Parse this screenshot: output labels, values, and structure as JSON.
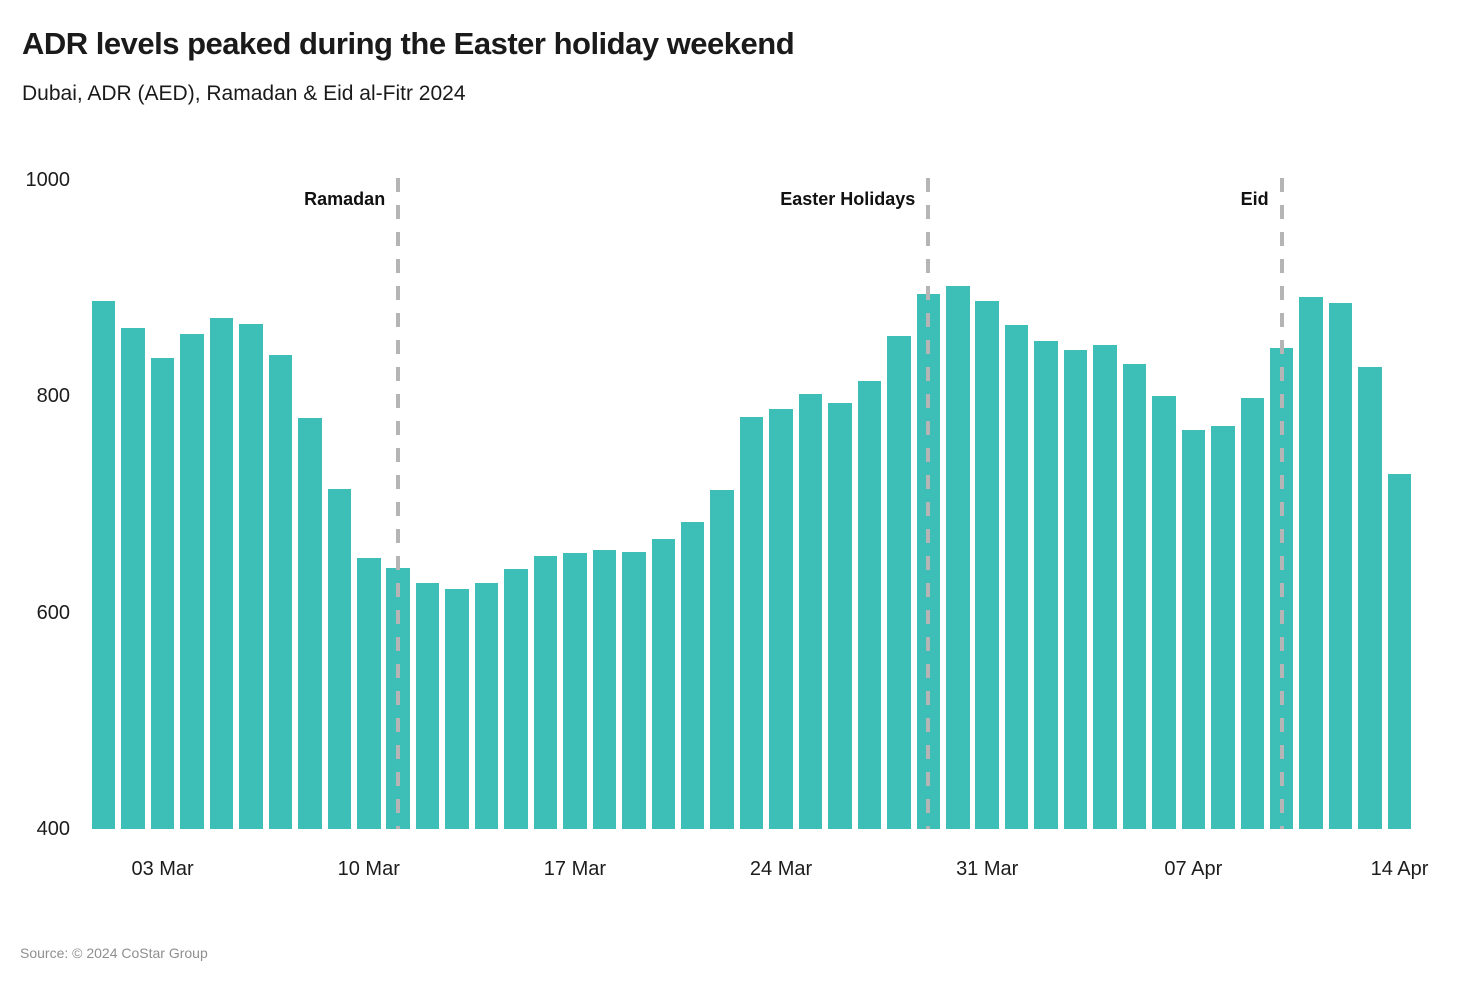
{
  "header": {
    "title": "ADR levels peaked during the Easter holiday weekend",
    "subtitle": "Dubai, ADR (AED), Ramadan & Eid al-Fitr 2024"
  },
  "footer": {
    "source": "Source: © 2024 CoStar Group"
  },
  "colors": {
    "bar": "#3DBEB6",
    "divider": "#b5b5b5",
    "text": "#1a1a1a",
    "source_text": "#8f8f8f"
  },
  "chart_data": {
    "type": "bar",
    "title": "ADR levels peaked during the Easter holiday weekend",
    "subtitle": "Dubai, ADR (AED), Ramadan & Eid al-Fitr 2024",
    "xlabel": "",
    "ylabel": "ADR (AED)",
    "ylim": [
      400,
      1000
    ],
    "grid": false,
    "legend": "none",
    "categories": [
      "01 Mar",
      "02 Mar",
      "03 Mar",
      "04 Mar",
      "05 Mar",
      "06 Mar",
      "07 Mar",
      "08 Mar",
      "09 Mar",
      "10 Mar",
      "11 Mar",
      "12 Mar",
      "13 Mar",
      "14 Mar",
      "15 Mar",
      "16 Mar",
      "17 Mar",
      "18 Mar",
      "19 Mar",
      "20 Mar",
      "21 Mar",
      "22 Mar",
      "23 Mar",
      "24 Mar",
      "25 Mar",
      "26 Mar",
      "27 Mar",
      "28 Mar",
      "29 Mar",
      "30 Mar",
      "31 Mar",
      "01 Apr",
      "02 Apr",
      "03 Apr",
      "04 Apr",
      "05 Apr",
      "06 Apr",
      "07 Apr",
      "08 Apr",
      "09 Apr",
      "10 Apr",
      "11 Apr",
      "12 Apr",
      "13 Apr",
      "14 Apr"
    ],
    "values": [
      888,
      863,
      835,
      858,
      872,
      867,
      838,
      780,
      714,
      651,
      641,
      627,
      622,
      627,
      640,
      652,
      655,
      658,
      656,
      668,
      684,
      713,
      781,
      788,
      802,
      794,
      814,
      856,
      895,
      902,
      888,
      866,
      851,
      843,
      847,
      830,
      800,
      769,
      773,
      798,
      845,
      892,
      886,
      827,
      728
    ],
    "y_ticks": [
      "400",
      "600",
      "800",
      "1000"
    ],
    "y_tick_values": [
      400,
      600,
      800,
      1000
    ],
    "x_ticks": [
      {
        "label": "03 Mar",
        "index": 2
      },
      {
        "label": "10 Mar",
        "index": 9
      },
      {
        "label": "17 Mar",
        "index": 16
      },
      {
        "label": "24 Mar",
        "index": 23
      },
      {
        "label": "31 Mar",
        "index": 30
      },
      {
        "label": "07 Apr",
        "index": 37
      },
      {
        "label": "14 Apr",
        "index": 44
      }
    ],
    "annotations": [
      {
        "label": "Ramadan",
        "index": 10
      },
      {
        "label": "Easter Holidays",
        "index": 28
      },
      {
        "label": "Eid",
        "index": 40
      }
    ]
  }
}
